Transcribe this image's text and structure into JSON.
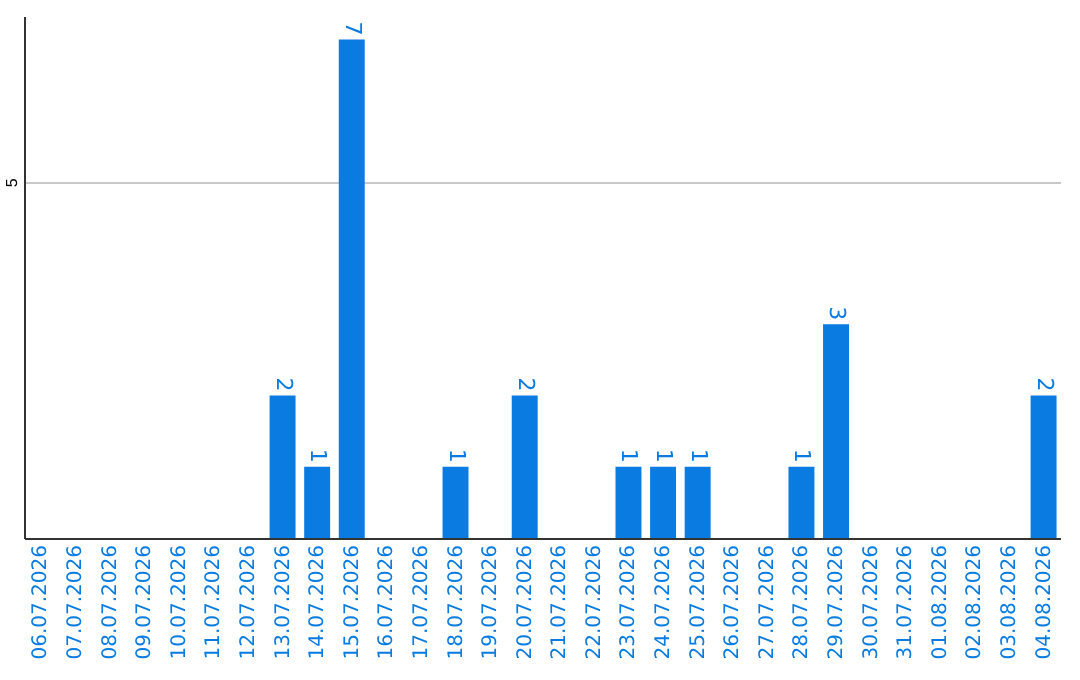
{
  "chart_data": {
    "type": "bar",
    "categories": [
      "06.07.2026",
      "07.07.2026",
      "08.07.2026",
      "09.07.2026",
      "10.07.2026",
      "11.07.2026",
      "12.07.2026",
      "13.07.2026",
      "14.07.2026",
      "15.07.2026",
      "16.07.2026",
      "17.07.2026",
      "18.07.2026",
      "19.07.2026",
      "20.07.2026",
      "21.07.2026",
      "22.07.2026",
      "23.07.2026",
      "24.07.2026",
      "25.07.2026",
      "26.07.2026",
      "27.07.2026",
      "28.07.2026",
      "29.07.2026",
      "30.07.2026",
      "31.07.2026",
      "01.08.2026",
      "02.08.2026",
      "03.08.2026",
      "04.08.2026"
    ],
    "values": [
      0,
      0,
      0,
      0,
      0,
      0,
      0,
      2,
      1,
      7,
      0,
      0,
      1,
      0,
      2,
      0,
      0,
      1,
      1,
      1,
      0,
      0,
      1,
      3,
      0,
      0,
      0,
      0,
      0,
      2
    ],
    "value_labels": [
      null,
      null,
      null,
      null,
      null,
      null,
      null,
      "2",
      "1",
      "7",
      null,
      null,
      "1",
      null,
      "2",
      null,
      null,
      "1",
      "1",
      "1",
      null,
      null,
      "1",
      "3",
      null,
      null,
      null,
      null,
      null,
      "2"
    ],
    "color": "#0a7be0",
    "ylim": [
      0,
      7.33
    ],
    "yticks": [
      5
    ],
    "grid": "y"
  }
}
